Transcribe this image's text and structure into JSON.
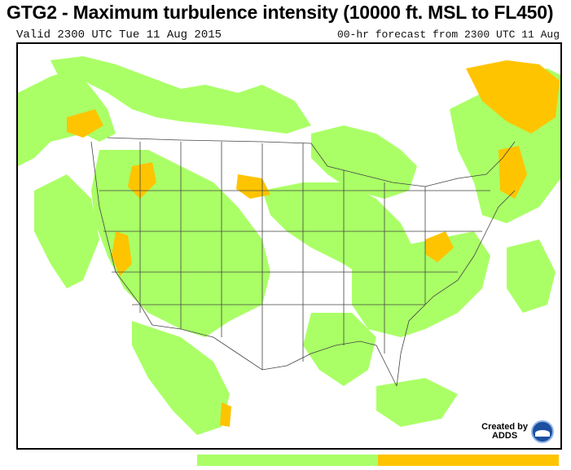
{
  "title": "GTG2 - Maximum turbulence intensity (10000 ft. MSL to FL450)",
  "valid_line": "Valid 2300 UTC Tue 11 Aug 2015",
  "forecast_line": "00-hr forecast from 2300 UTC 11 Aug",
  "credit": {
    "line1": "Created by",
    "line2": "ADDS"
  },
  "colors": {
    "light": "#aaff66",
    "moderate": "#ffc400",
    "border": "#444444"
  },
  "legend": [
    {
      "label": "",
      "color": "#ffffff"
    },
    {
      "label": "",
      "color": "#aaff66"
    },
    {
      "label": "",
      "color": "#ffc400"
    }
  ]
}
